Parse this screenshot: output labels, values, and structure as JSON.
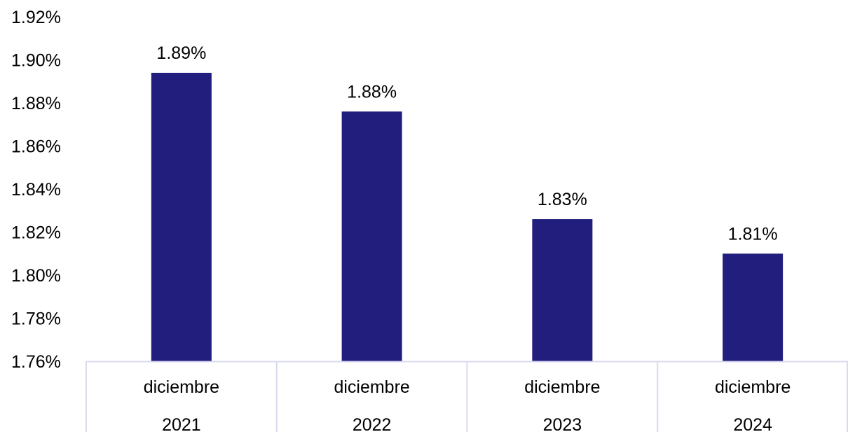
{
  "chart_data": {
    "type": "bar",
    "categories": [
      [
        "diciembre",
        "2021"
      ],
      [
        "diciembre",
        "2022"
      ],
      [
        "diciembre",
        "2023"
      ],
      [
        "diciembre",
        "2024"
      ]
    ],
    "values": [
      1.894,
      1.876,
      1.826,
      1.81
    ],
    "data_labels": [
      "1.89%",
      "1.88%",
      "1.83%",
      "1.81%"
    ],
    "ylim": [
      1.76,
      1.92
    ],
    "yticks": [
      1.76,
      1.78,
      1.8,
      1.82,
      1.84,
      1.86,
      1.88,
      1.9,
      1.92
    ],
    "ytick_labels": [
      "1.76%",
      "1.78%",
      "1.80%",
      "1.82%",
      "1.84%",
      "1.86%",
      "1.88%",
      "1.90%",
      "1.92%"
    ],
    "grid": false,
    "legend": "none",
    "bar_color": "#211E7E",
    "axis_color": "#D9D9F0"
  }
}
